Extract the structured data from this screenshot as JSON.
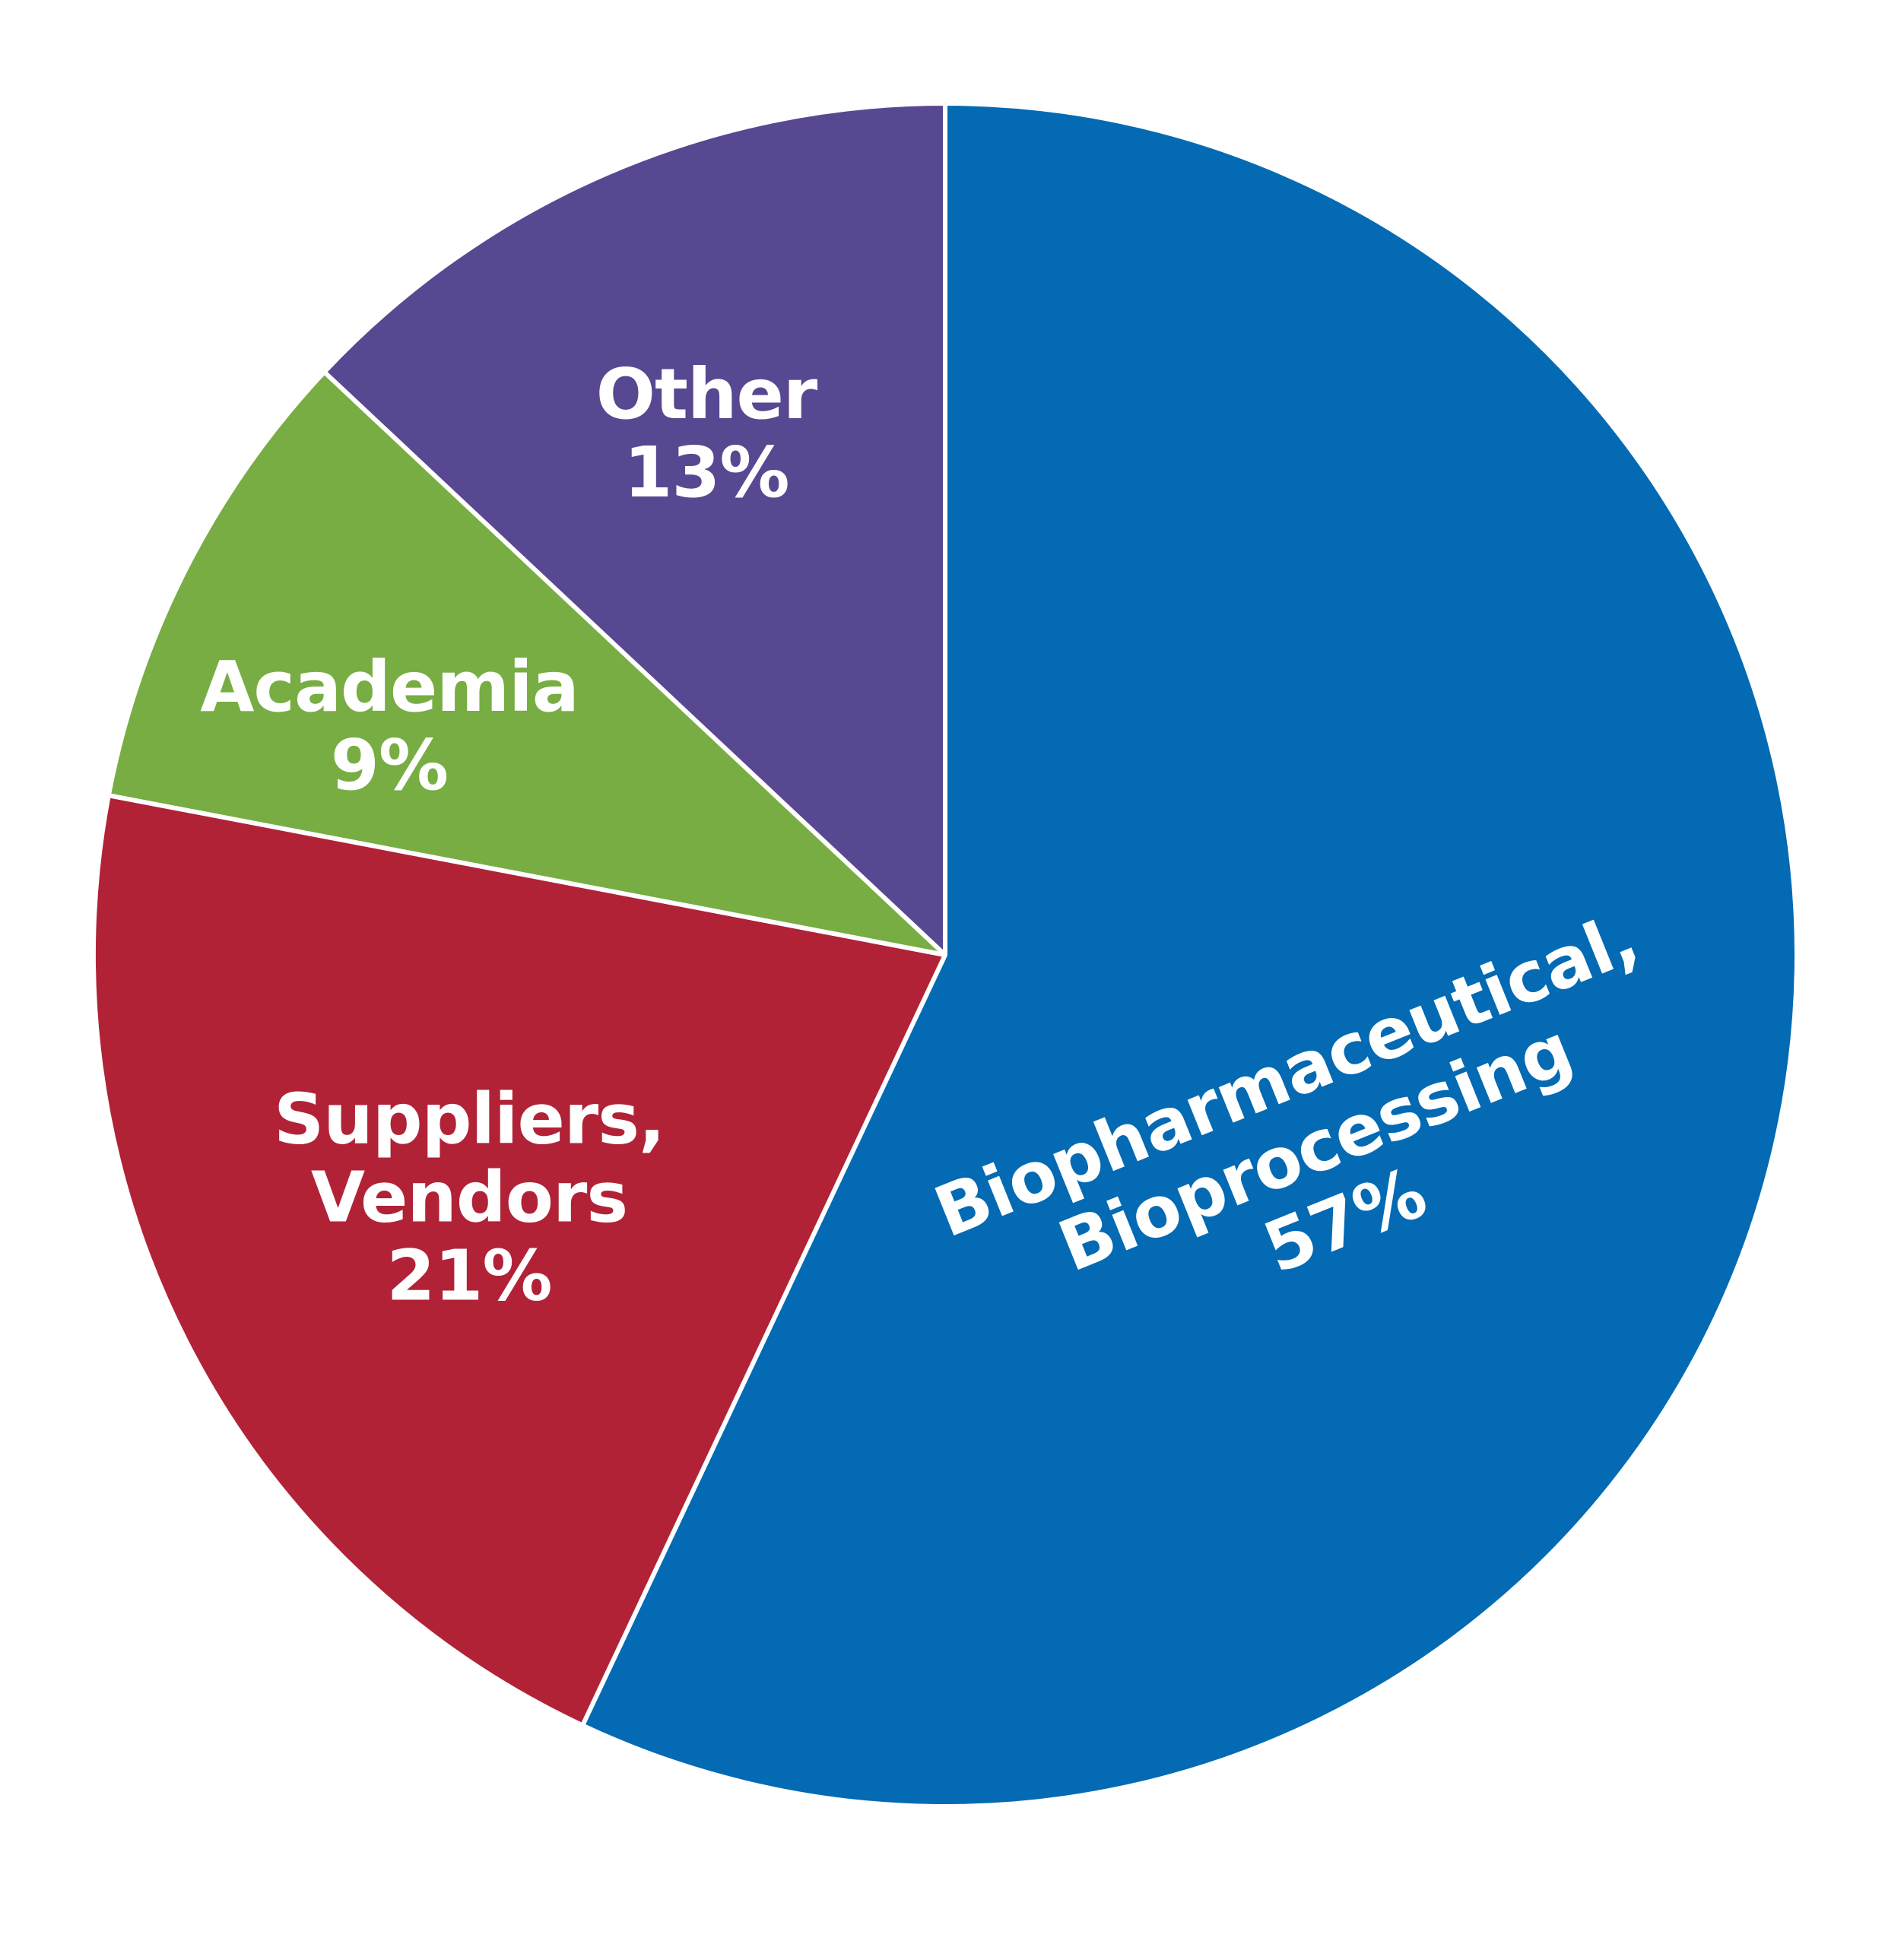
{
  "chart_data": {
    "type": "pie",
    "categories": [
      "Biopharmaceutical,\nBioprocessing",
      "Suppliers,\nVendors",
      "Academia",
      "Other"
    ],
    "values": [
      57,
      21,
      9,
      13
    ],
    "value_labels": [
      "57%",
      "21%",
      "9%",
      "13%"
    ],
    "colors": [
      "#036ab3",
      "#b12237",
      "#77ad43",
      "#584891"
    ]
  }
}
